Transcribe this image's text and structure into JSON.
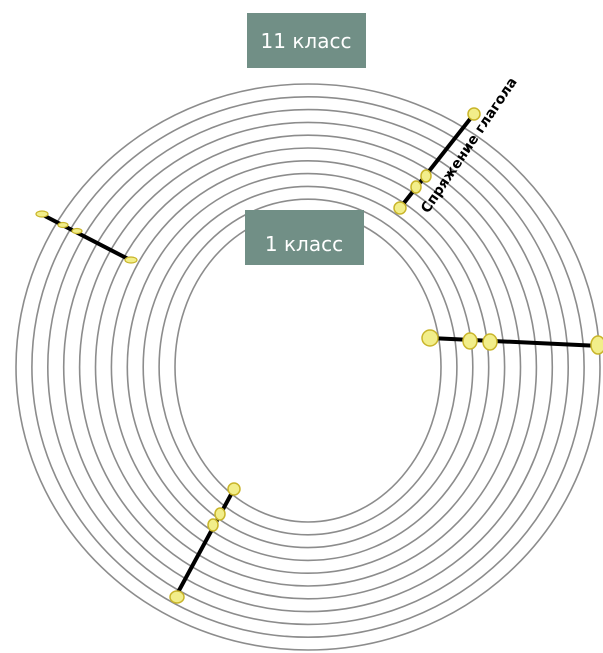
{
  "labels": {
    "outer_grade": "11 класс",
    "inner_grade": "1 класс",
    "topic": "Спряжение глагола"
  },
  "colors": {
    "ring": "#8c8c8c",
    "label_box": "#718f86",
    "label_text": "#ffffff",
    "marker_fill": "#f2ee8a",
    "marker_stroke": "#c9b52a",
    "line": "#000000"
  }
}
